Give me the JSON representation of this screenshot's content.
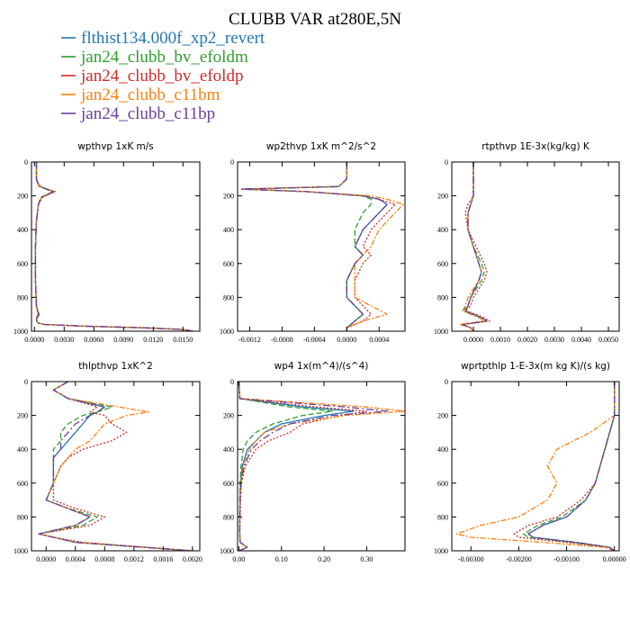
{
  "title": "CLUBB VAR at280E,5N",
  "legend": [
    {
      "name": "flthist134.000f_xp2_revert",
      "color": "#1f77b4",
      "dash": ""
    },
    {
      "name": "jan24_clubb_bv_efoldm",
      "color": "#2ca02c",
      "dash": "6 3"
    },
    {
      "name": "jan24_clubb_bv_efoldp",
      "color": "#d62728",
      "dash": "2 2"
    },
    {
      "name": "jan24_clubb_c11bm",
      "color": "#ff7f0e",
      "dash": "6 2 2 2"
    },
    {
      "name": "jan24_clubb_c11bp",
      "color": "#6a3d9a",
      "dash": "8 3 2 3"
    }
  ],
  "chart_data": [
    {
      "type": "line",
      "title": "wpthvp   1xK m/s",
      "xlim": [
        -0.0003,
        0.0167
      ],
      "ylim": [
        1000,
        0
      ],
      "xticks": [
        "0.0000",
        "0.0030",
        "0.0060",
        "0.0090",
        "0.0120",
        "0.0150"
      ],
      "xtick_values": [
        0,
        0.003,
        0.006,
        0.009,
        0.012,
        0.015
      ],
      "yticks": [
        "0",
        "200",
        "400",
        "600",
        "800",
        "1000"
      ],
      "y": [
        0,
        100,
        140,
        160,
        175,
        190,
        210,
        250,
        350,
        500,
        700,
        850,
        900,
        930,
        950,
        960,
        970,
        980,
        990,
        1000
      ],
      "series": [
        {
          "values": [
            0.0002,
            0.0002,
            0.0004,
            0.0012,
            0.002,
            0.0014,
            0.0007,
            0.0004,
            0.0002,
            0.0001,
            0.0001,
            0.0002,
            0.0004,
            0.0002,
            0.0003,
            0.001,
            0.005,
            0.011,
            0.015,
            0.016
          ]
        },
        {
          "values": [
            0.0002,
            0.0002,
            0.0004,
            0.0011,
            0.0019,
            0.0013,
            0.0006,
            0.0004,
            0.0002,
            0.0001,
            0.0001,
            0.0002,
            0.0005,
            0.0002,
            0.0003,
            0.001,
            0.005,
            0.011,
            0.015,
            0.016
          ]
        },
        {
          "values": [
            0.0002,
            0.0002,
            0.0005,
            0.0013,
            0.0021,
            0.0015,
            0.0008,
            0.0004,
            0.0002,
            0.0001,
            0.0001,
            0.0002,
            0.0004,
            0.0002,
            0.0003,
            0.001,
            0.005,
            0.011,
            0.015,
            0.016
          ]
        },
        {
          "values": [
            0.0002,
            0.0002,
            0.0004,
            0.0012,
            0.002,
            0.0014,
            0.0007,
            0.0004,
            0.0002,
            0.0001,
            0.0001,
            0.0002,
            0.0003,
            0.0002,
            0.0003,
            0.001,
            0.005,
            0.011,
            0.015,
            0.016
          ]
        },
        {
          "values": [
            0.0002,
            0.0002,
            0.0004,
            0.0012,
            0.002,
            0.0014,
            0.0007,
            0.0004,
            0.0002,
            0.0001,
            0.0001,
            0.0002,
            0.0004,
            0.0002,
            0.0003,
            0.001,
            0.005,
            0.011,
            0.015,
            0.016
          ]
        }
      ]
    },
    {
      "type": "line",
      "title": "wp2thvp   1xK m^2/s^2",
      "xlim": [
        -0.00135,
        0.00072
      ],
      "ylim": [
        1000,
        0
      ],
      "xticks": [
        "-0.0012",
        "-0.0008",
        "-0.0004",
        "0.0000",
        "0.0004"
      ],
      "xtick_values": [
        -0.0012,
        -0.0008,
        -0.0004,
        0,
        0.0004
      ],
      "yticks": [
        "0",
        "200",
        "400",
        "600",
        "800",
        "1000"
      ],
      "y": [
        0,
        100,
        145,
        160,
        175,
        200,
        220,
        250,
        300,
        400,
        500,
        550,
        600,
        700,
        800,
        850,
        900,
        940,
        980,
        1000
      ],
      "series": [
        {
          "values": [
            0.0,
            0.0,
            -0.0001,
            -0.0013,
            -0.0005,
            0.0002,
            0.0004,
            0.0005,
            0.0004,
            0.0002,
            0.0001,
            0.0002,
            0.0001,
            0.0,
            0.0,
            0.0001,
            0.0002,
            0.0001,
            0.0,
            0.0
          ]
        },
        {
          "values": [
            0.0,
            0.0,
            -0.0001,
            -0.0013,
            -0.0005,
            0.0002,
            0.0003,
            0.0003,
            0.0002,
            0.0001,
            0.0001,
            0.0002,
            0.0001,
            0.0,
            0.0,
            0.0001,
            0.0002,
            0.0001,
            0.0,
            0.0
          ]
        },
        {
          "values": [
            0.0,
            0.0,
            -0.0001,
            -0.0013,
            -0.0005,
            0.0002,
            0.0004,
            0.0006,
            0.0005,
            0.0003,
            0.0002,
            0.0003,
            0.0002,
            0.0001,
            0.0001,
            0.0002,
            0.0003,
            0.0002,
            0.0,
            0.0
          ]
        },
        {
          "values": [
            0.0,
            0.0,
            -0.0001,
            -0.0013,
            -0.0005,
            0.0003,
            0.0005,
            0.0007,
            0.0006,
            0.0004,
            0.0003,
            0.0002,
            0.0001,
            0.0001,
            0.0001,
            0.0003,
            0.0005,
            0.0002,
            0.0,
            0.0
          ]
        },
        {
          "values": [
            0.0,
            0.0,
            -0.0001,
            -0.0013,
            -0.0005,
            0.0002,
            0.0004,
            0.0005,
            0.0004,
            0.0002,
            0.0001,
            0.0002,
            0.0001,
            0.0,
            0.0,
            0.0001,
            0.0002,
            0.0001,
            0.0,
            0.0
          ]
        }
      ]
    },
    {
      "type": "line",
      "title": "rtpthvp   1E-3x(kg/kg) K",
      "xlim": [
        -0.0008,
        0.0054
      ],
      "ylim": [
        1000,
        0
      ],
      "xticks": [
        "0.0000",
        "0.0010",
        "0.0020",
        "0.0030",
        "0.0040",
        "0.0050"
      ],
      "xtick_values": [
        0,
        0.001,
        0.002,
        0.003,
        0.004,
        0.005
      ],
      "yticks": [
        "0",
        "200",
        "400",
        "600",
        "800",
        "1000"
      ],
      "y": [
        0,
        100,
        200,
        250,
        300,
        400,
        500,
        600,
        650,
        700,
        800,
        850,
        880,
        900,
        920,
        940,
        960,
        980,
        1000
      ],
      "series": [
        {
          "values": [
            0.0,
            0.0,
            0.0,
            -0.0001,
            -0.0002,
            -0.0002,
            0.0,
            0.0002,
            0.0003,
            0.0002,
            -0.0001,
            -0.0002,
            -0.0003,
            0.0,
            0.0003,
            0.0005,
            -0.0004,
            -0.0001,
            0.0
          ]
        },
        {
          "values": [
            0.0,
            0.0,
            0.0,
            -0.0001,
            -0.0002,
            -0.0002,
            0.0,
            0.0003,
            0.0004,
            0.0003,
            -0.0001,
            -0.0002,
            -0.0004,
            0.0,
            0.0003,
            0.0005,
            -0.0004,
            -0.0001,
            0.0
          ]
        },
        {
          "values": [
            0.0,
            0.0,
            0.0,
            -0.0002,
            -0.0003,
            -0.0002,
            0.0001,
            0.0004,
            0.0005,
            0.0004,
            0.0,
            -0.0001,
            -0.0003,
            0.0001,
            0.0004,
            0.0006,
            -0.0004,
            -0.0001,
            0.0
          ]
        },
        {
          "values": [
            0.0,
            0.0,
            0.0,
            -0.0001,
            -0.0002,
            -0.0002,
            0.0,
            0.0002,
            0.0003,
            0.0002,
            -0.0002,
            -0.0003,
            -0.0004,
            -0.0001,
            0.0002,
            0.0004,
            -0.0005,
            -0.0001,
            0.0
          ]
        },
        {
          "values": [
            0.0,
            0.0,
            0.0,
            -0.0001,
            -0.0002,
            -0.0002,
            0.0,
            0.0002,
            0.0003,
            0.0002,
            -0.0001,
            -0.0002,
            -0.0003,
            0.0,
            0.0003,
            0.0005,
            -0.0004,
            -0.0001,
            0.0
          ]
        }
      ]
    },
    {
      "type": "line",
      "title": "thlpthvp   1xK^2",
      "xlim": [
        -0.0002,
        0.0021
      ],
      "ylim": [
        1000,
        0
      ],
      "xticks": [
        "0.0000",
        "0.0004",
        "0.0008",
        "0.0012",
        "0.0016",
        "0.0020"
      ],
      "xtick_values": [
        0,
        0.0004,
        0.0008,
        0.0012,
        0.0016,
        0.002
      ],
      "yticks": [
        "0",
        "200",
        "400",
        "600",
        "800",
        "1000"
      ],
      "y": [
        0,
        50,
        100,
        150,
        180,
        200,
        250,
        300,
        350,
        400,
        450,
        500,
        600,
        700,
        750,
        800,
        850,
        900,
        920,
        950,
        1000
      ],
      "series": [
        {
          "values": [
            0.0003,
            0.0001,
            0.0003,
            0.0008,
            0.0007,
            0.0006,
            0.0005,
            0.0004,
            0.0003,
            0.0002,
            0.0001,
            0.0001,
            0.0001,
            0.0,
            0.0003,
            0.0006,
            0.0004,
            -0.0001,
            0.0001,
            0.0004,
            0.002
          ]
        },
        {
          "values": [
            0.0003,
            0.0001,
            0.0003,
            0.0009,
            0.0007,
            0.0005,
            0.0003,
            0.0002,
            0.0002,
            0.0001,
            0.0001,
            0.0001,
            0.0001,
            0.0,
            0.0003,
            0.0007,
            0.0005,
            -0.0001,
            0.0001,
            0.0004,
            0.002
          ]
        },
        {
          "values": [
            0.0003,
            0.0001,
            0.0003,
            0.0007,
            0.0006,
            0.0008,
            0.0009,
            0.0011,
            0.0009,
            0.0005,
            0.0003,
            0.0002,
            0.0001,
            0.0001,
            0.0004,
            0.0008,
            0.0006,
            -0.0001,
            0.0001,
            0.0005,
            0.002
          ]
        },
        {
          "values": [
            0.0003,
            0.0001,
            0.0003,
            0.001,
            0.0014,
            0.0011,
            0.0008,
            0.0007,
            0.0006,
            0.0004,
            0.0003,
            0.0002,
            0.0001,
            0.0,
            0.0003,
            0.0006,
            0.0004,
            -0.0001,
            0.0001,
            0.0004,
            0.002
          ]
        },
        {
          "values": [
            0.0003,
            0.0001,
            0.0003,
            0.0008,
            0.0007,
            0.0006,
            0.0004,
            0.0003,
            0.0002,
            0.0002,
            0.0001,
            0.0001,
            0.0001,
            0.0,
            0.0003,
            0.0006,
            0.0004,
            -0.0001,
            0.0001,
            0.0004,
            0.002
          ]
        }
      ]
    },
    {
      "type": "line",
      "title": "wp4   1x(m^4)/(s^4)",
      "xlim": [
        -0.003,
        0.39
      ],
      "ylim": [
        1000,
        0
      ],
      "xticks": [
        "0.00",
        "0.10",
        "0.20",
        "0.30"
      ],
      "xtick_values": [
        0,
        0.1,
        0.2,
        0.3
      ],
      "yticks": [
        "0",
        "200",
        "400",
        "600",
        "800",
        "1000"
      ],
      "y": [
        0,
        100,
        150,
        175,
        200,
        250,
        300,
        350,
        400,
        500,
        600,
        700,
        800,
        900,
        950,
        980,
        1000
      ],
      "series": [
        {
          "values": [
            0.0,
            0.002,
            0.15,
            0.27,
            0.2,
            0.1,
            0.06,
            0.04,
            0.02,
            0.008,
            0.004,
            0.003,
            0.002,
            0.002,
            0.003,
            0.02,
            0.0
          ]
        },
        {
          "values": [
            0.0,
            0.002,
            0.12,
            0.22,
            0.15,
            0.08,
            0.04,
            0.02,
            0.01,
            0.005,
            0.003,
            0.002,
            0.002,
            0.002,
            0.003,
            0.02,
            0.0
          ]
        },
        {
          "values": [
            0.0,
            0.002,
            0.18,
            0.3,
            0.24,
            0.15,
            0.12,
            0.07,
            0.04,
            0.015,
            0.006,
            0.004,
            0.003,
            0.002,
            0.003,
            0.02,
            0.0
          ]
        },
        {
          "values": [
            0.0,
            0.003,
            0.3,
            0.39,
            0.25,
            0.12,
            0.06,
            0.04,
            0.025,
            0.01,
            0.005,
            0.003,
            0.002,
            0.002,
            0.003,
            0.02,
            0.0
          ]
        },
        {
          "values": [
            0.0,
            0.002,
            0.25,
            0.35,
            0.22,
            0.12,
            0.08,
            0.05,
            0.03,
            0.012,
            0.005,
            0.003,
            0.002,
            0.002,
            0.003,
            0.02,
            0.0
          ]
        }
      ]
    },
    {
      "type": "line",
      "title": "wprtpthlp   1-E-3x(m kg K)/(s kg)",
      "xlim": [
        -0.0034,
        0.0001
      ],
      "ylim": [
        1000,
        0
      ],
      "xticks": [
        "-0.00300",
        "-0.00200",
        "-0.00100",
        "0.00000"
      ],
      "xtick_values": [
        -0.003,
        -0.002,
        -0.001,
        0
      ],
      "yticks": [
        "0",
        "200",
        "400",
        "600",
        "800",
        "1000"
      ],
      "y": [
        0,
        200,
        300,
        400,
        500,
        600,
        700,
        800,
        850,
        900,
        920,
        950,
        980,
        1000
      ],
      "series": [
        {
          "values": [
            0.0,
            0.0,
            -0.0001,
            -0.0002,
            -0.0003,
            -0.0004,
            -0.0006,
            -0.001,
            -0.0015,
            -0.0018,
            -0.0017,
            -0.0008,
            -0.0001,
            0.0
          ]
        },
        {
          "values": [
            0.0,
            0.0,
            -0.0001,
            -0.0002,
            -0.0003,
            -0.0004,
            -0.0006,
            -0.0011,
            -0.0016,
            -0.0019,
            -0.0018,
            -0.0009,
            -0.0001,
            0.0
          ]
        },
        {
          "values": [
            0.0,
            0.0,
            -0.0001,
            -0.0002,
            -0.0003,
            -0.0004,
            -0.0007,
            -0.0012,
            -0.0018,
            -0.0021,
            -0.002,
            -0.001,
            -0.0001,
            0.0
          ]
        },
        {
          "values": [
            0.0,
            0.0,
            -0.0005,
            -0.0012,
            -0.0014,
            -0.0012,
            -0.0014,
            -0.002,
            -0.0028,
            -0.0033,
            -0.003,
            -0.0015,
            -0.0002,
            0.0
          ]
        },
        {
          "values": [
            0.0,
            0.0,
            -0.0001,
            -0.0002,
            -0.0003,
            -0.0004,
            -0.0006,
            -0.001,
            -0.0015,
            -0.0018,
            -0.0017,
            -0.0008,
            -0.0001,
            0.0
          ]
        }
      ]
    }
  ]
}
